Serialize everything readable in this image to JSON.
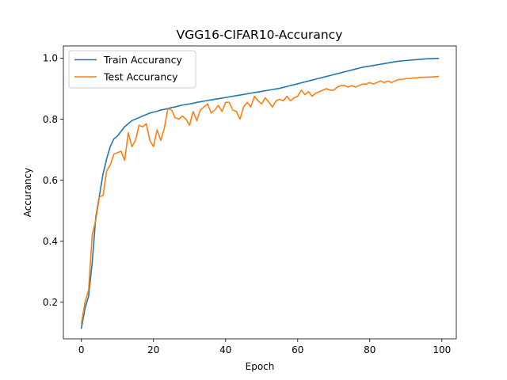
{
  "chart_data": {
    "type": "line",
    "title": "VGG16-CIFAR10-Accurancy",
    "xlabel": "Epoch",
    "ylabel": "Accurancy",
    "xlim": [
      -5,
      104
    ],
    "ylim": [
      0.08,
      1.04
    ],
    "xticks": [
      0,
      20,
      40,
      60,
      80,
      100
    ],
    "yticks": [
      0.2,
      0.4,
      0.6,
      0.8,
      1.0
    ],
    "xtick_labels": [
      "0",
      "20",
      "40",
      "60",
      "80",
      "100"
    ],
    "ytick_labels": [
      "0.2",
      "0.4",
      "0.6",
      "0.8",
      "1.0"
    ],
    "grid": false,
    "legend_position": "upper-left",
    "series": [
      {
        "name": "Train Accurancy",
        "color": "#1f77b4",
        "values": [
          0.115,
          0.18,
          0.22,
          0.33,
          0.48,
          0.55,
          0.62,
          0.67,
          0.71,
          0.735,
          0.745,
          0.76,
          0.775,
          0.785,
          0.795,
          0.8,
          0.805,
          0.81,
          0.815,
          0.82,
          0.823,
          0.826,
          0.83,
          0.832,
          0.835,
          0.838,
          0.84,
          0.843,
          0.846,
          0.848,
          0.85,
          0.852,
          0.855,
          0.857,
          0.859,
          0.861,
          0.863,
          0.865,
          0.867,
          0.869,
          0.871,
          0.873,
          0.875,
          0.877,
          0.879,
          0.881,
          0.883,
          0.885,
          0.887,
          0.889,
          0.891,
          0.893,
          0.895,
          0.897,
          0.899,
          0.901,
          0.904,
          0.907,
          0.91,
          0.913,
          0.916,
          0.919,
          0.922,
          0.925,
          0.928,
          0.931,
          0.934,
          0.937,
          0.94,
          0.943,
          0.946,
          0.949,
          0.952,
          0.955,
          0.958,
          0.961,
          0.964,
          0.967,
          0.97,
          0.972,
          0.974,
          0.976,
          0.978,
          0.98,
          0.982,
          0.984,
          0.986,
          0.988,
          0.99,
          0.991,
          0.992,
          0.993,
          0.994,
          0.995,
          0.996,
          0.997,
          0.998,
          0.998,
          0.999,
          0.999
        ]
      },
      {
        "name": "Test Accurancy",
        "color": "#ff7f0e",
        "values": [
          0.13,
          0.2,
          0.24,
          0.42,
          0.47,
          0.545,
          0.55,
          0.63,
          0.65,
          0.685,
          0.69,
          0.695,
          0.665,
          0.755,
          0.71,
          0.73,
          0.78,
          0.775,
          0.785,
          0.73,
          0.71,
          0.765,
          0.73,
          0.77,
          0.835,
          0.83,
          0.805,
          0.8,
          0.81,
          0.8,
          0.78,
          0.825,
          0.795,
          0.83,
          0.84,
          0.85,
          0.82,
          0.83,
          0.845,
          0.825,
          0.855,
          0.855,
          0.83,
          0.825,
          0.8,
          0.84,
          0.855,
          0.84,
          0.875,
          0.86,
          0.85,
          0.87,
          0.855,
          0.84,
          0.86,
          0.865,
          0.86,
          0.875,
          0.86,
          0.87,
          0.875,
          0.895,
          0.88,
          0.89,
          0.875,
          0.885,
          0.89,
          0.895,
          0.9,
          0.895,
          0.895,
          0.905,
          0.91,
          0.91,
          0.905,
          0.91,
          0.905,
          0.91,
          0.915,
          0.915,
          0.92,
          0.915,
          0.92,
          0.925,
          0.92,
          0.925,
          0.92,
          0.925,
          0.93,
          0.93,
          0.933,
          0.933,
          0.935,
          0.935,
          0.937,
          0.937,
          0.938,
          0.938,
          0.939,
          0.94
        ]
      }
    ]
  }
}
